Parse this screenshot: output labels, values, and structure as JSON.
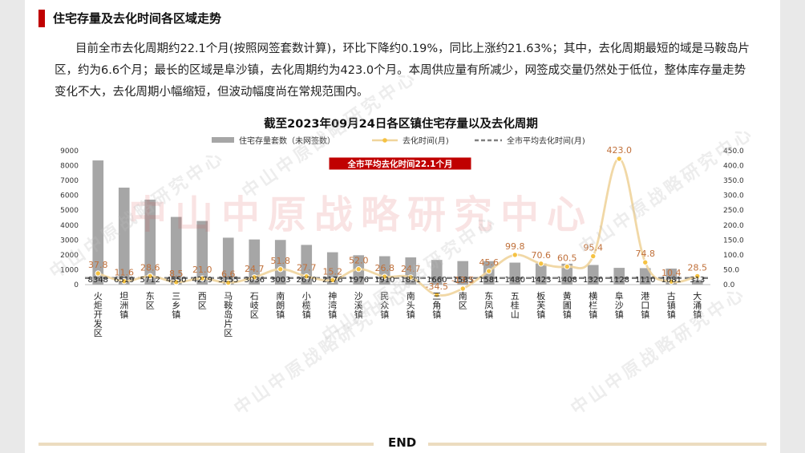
{
  "section_title": "住宅存量及去化时间各区域走势",
  "paragraph": "目前全市去化周期约22.1个月(按照网签套数计算)，环比下降约0.19%，同比上涨约21.63%；其中，去化周期最短的域是马鞍岛片区，约为6.6个月；最长的区域是阜沙镇，去化周期约为423.0个月。本周供应量有所减少，网签成交量仍然处于低位，整体库存量走势变化不大，去化周期小幅缩短，但波动幅度尚在常规范围内。",
  "watermark_text": "中山中原战略研究中心",
  "watermark_big": "中山中原战略研究中心",
  "footer_end": "END",
  "colors": {
    "accent": "#c00000",
    "bar": "#a6a6a6",
    "line": "#f0d49c",
    "marker": "#f5c242",
    "avg_line": "#808080",
    "line_label": "#c0703a"
  },
  "chart_data": {
    "type": "bar",
    "title": "截至2023年09月24日各区镇住宅存量以及去化周期",
    "annotation": "全市平均去化时间22.1个月",
    "categories": [
      "火炬开发区",
      "坦洲镇",
      "东区",
      "三乡镇",
      "西区",
      "马鞍岛片区",
      "石岐区",
      "南朗镇",
      "小榄镇",
      "神湾镇",
      "沙溪镇",
      "民众镇",
      "南头镇",
      "三角镇",
      "南区",
      "东凤镇",
      "五桂山",
      "板芙镇",
      "黄圃镇",
      "横栏镇",
      "阜沙镇",
      "港口镇",
      "古镇镇",
      "大涌镇"
    ],
    "series": [
      {
        "name": "住宅存量套数（未网签数）",
        "type": "bar",
        "axis": "left",
        "values": [
          8348,
          6519,
          5712,
          4550,
          4279,
          3155,
          3036,
          3003,
          2670,
          2176,
          1976,
          1910,
          1831,
          1660,
          1583,
          1581,
          1480,
          1423,
          1408,
          1320,
          1128,
          1110,
          1081,
          313
        ]
      },
      {
        "name": "去化时间(月)",
        "type": "line",
        "axis": "right",
        "values": [
          37.8,
          11.6,
          28.6,
          8.5,
          21.0,
          6.6,
          24.7,
          51.8,
          27.7,
          15.2,
          52.0,
          26.8,
          24.7,
          -34.5,
          -13.5,
          45.6,
          99.8,
          70.6,
          60.5,
          95.4,
          423.0,
          74.8,
          10.4,
          28.5
        ]
      },
      {
        "name": "全市平均去化时间(月)",
        "type": "line",
        "axis": "right",
        "value": 22.1
      }
    ],
    "left_axis": {
      "min": 0,
      "max": 9000,
      "ticks": [
        "0",
        "1000",
        "2000",
        "3000",
        "4000",
        "5000",
        "6000",
        "7000",
        "8000",
        "9000"
      ]
    },
    "right_axis": {
      "min": 0,
      "max": 450,
      "ticks": [
        "0.0",
        "50.0",
        "100.0",
        "150.0",
        "200.0",
        "250.0",
        "300.0",
        "350.0",
        "400.0",
        "450.0"
      ]
    },
    "legend_position": "top",
    "grid": false
  }
}
